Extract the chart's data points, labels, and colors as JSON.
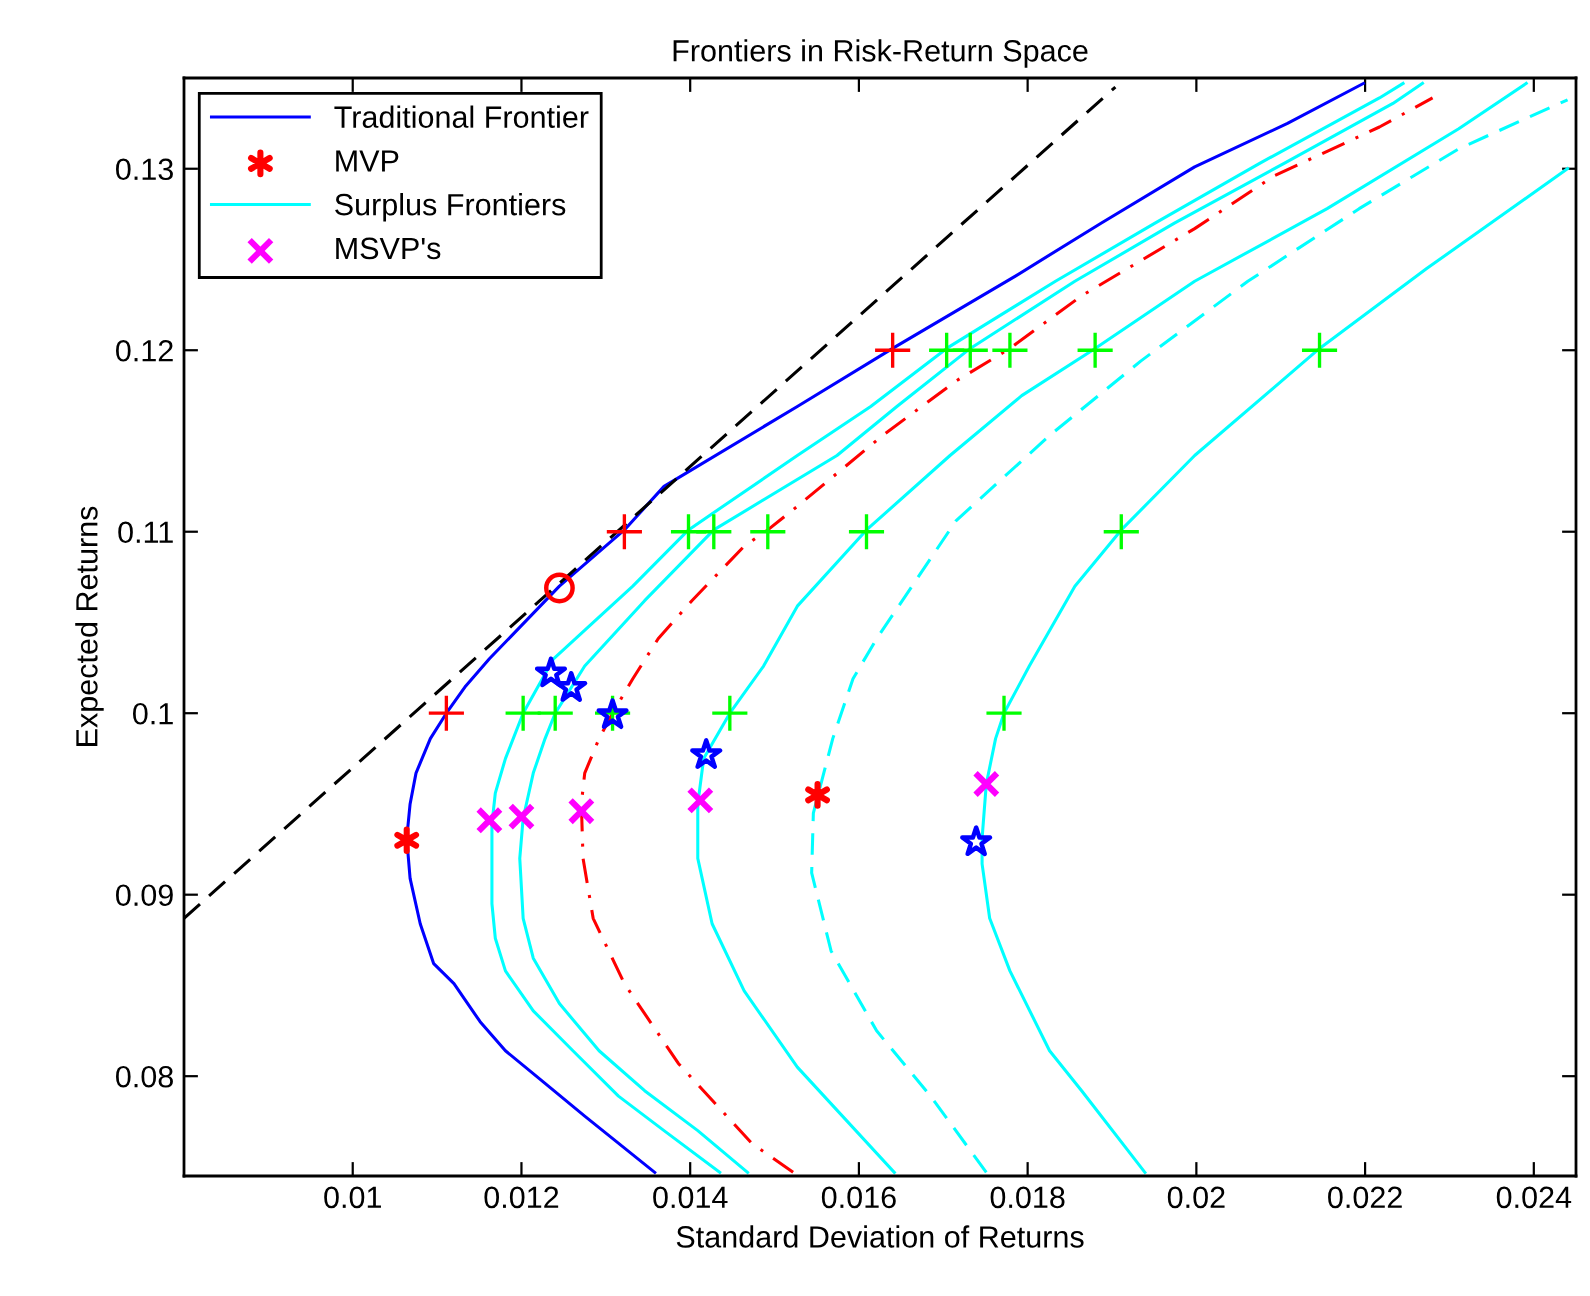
{
  "chart_data": {
    "type": "line",
    "title": "Frontiers in Risk-Return Space",
    "xlabel": "Standard Deviation of Returns",
    "ylabel": "Expected Returns",
    "xlim": [
      0.008,
      0.0245
    ],
    "ylim": [
      0.0745,
      0.135
    ],
    "xticks": [
      0.01,
      0.012,
      0.014,
      0.016,
      0.018,
      0.02,
      0.022,
      0.024
    ],
    "yticks": [
      0.08,
      0.09,
      0.1,
      0.11,
      0.12,
      0.13
    ],
    "grid": false,
    "legend": "top left",
    "series": [
      {
        "name": "Traditional Frontier",
        "color": "#0000ff",
        "line_style": "solid",
        "marker": "none",
        "x": [
          0.01358,
          0.01275,
          0.01228,
          0.01181,
          0.01151,
          0.0112,
          0.01096,
          0.0108,
          0.01068,
          0.01064,
          0.01068,
          0.01075,
          0.01092,
          0.01111,
          0.01134,
          0.01162,
          0.01245,
          0.01322,
          0.01369,
          0.01527,
          0.0164,
          0.01786,
          0.01887,
          0.01998,
          0.02108,
          0.02198
        ],
        "values": [
          0.0747,
          0.0778,
          0.0796,
          0.0814,
          0.083,
          0.0851,
          0.0862,
          0.0884,
          0.0909,
          0.0931,
          0.095,
          0.0967,
          0.0986,
          0.1,
          0.1015,
          0.103,
          0.107,
          0.1101,
          0.1125,
          0.1169,
          0.1201,
          0.1241,
          0.127,
          0.1301,
          0.1325,
          0.1347
        ]
      },
      {
        "name": "MVP",
        "type": "scatter",
        "color": "#ff0000",
        "x": [
          0.01064,
          0.01551
        ],
        "values": [
          0.093,
          0.0955
        ]
      },
      {
        "name": "Surplus Frontiers",
        "color": "#00ffff",
        "line_style": "solid",
        "marker": "none",
        "x": [
          0.01435,
          0.01369,
          0.01315,
          0.01261,
          0.01214,
          0.01181,
          0.01169,
          0.01165,
          0.01165,
          0.01169,
          0.01181,
          0.01202,
          0.01238,
          0.01332,
          0.01398,
          0.01527,
          0.01614,
          0.01704,
          0.01833,
          0.01951,
          0.02075,
          0.02217,
          0.02245
        ],
        "values": [
          0.0747,
          0.077,
          0.0789,
          0.0814,
          0.0836,
          0.0858,
          0.0876,
          0.0895,
          0.0939,
          0.0956,
          0.0975,
          0.1,
          0.103,
          0.107,
          0.1101,
          0.1142,
          0.1169,
          0.1201,
          0.1238,
          0.127,
          0.1303,
          0.1339,
          0.1347
        ]
      },
      {
        "name": "MSVP's",
        "type": "scatter",
        "color": "#ff00ff",
        "marker": "cross",
        "x": [
          0.01162,
          0.012,
          0.01271,
          0.01412,
          0.01751
        ],
        "values": [
          0.0941,
          0.0943,
          0.0946,
          0.0952,
          0.0961
        ]
      },
      {
        "color": "#00ffff",
        "line_style": "solid",
        "marker": "none",
        "x": [
          0.01468,
          0.01409,
          0.01346,
          0.01292,
          0.01245,
          0.01214,
          0.01202,
          0.01198,
          0.01202,
          0.01214,
          0.01228,
          0.0124,
          0.01275,
          0.01346,
          0.01428,
          0.01574,
          0.01645,
          0.01732,
          0.01856,
          0.01974,
          0.02104,
          0.02233,
          0.02268
        ],
        "values": [
          0.0747,
          0.077,
          0.0792,
          0.0814,
          0.084,
          0.0865,
          0.0887,
          0.092,
          0.0942,
          0.0967,
          0.0986,
          0.1,
          0.1026,
          0.1062,
          0.1101,
          0.1142,
          0.1169,
          0.1201,
          0.1238,
          0.127,
          0.1303,
          0.1336,
          0.1347
        ]
      },
      {
        "color": "#ff0000",
        "line_style": "dashdot",
        "marker": "none",
        "x": [
          0.01522,
          0.01473,
          0.01386,
          0.01322,
          0.01285,
          0.01273,
          0.01271,
          0.01275,
          0.01292,
          0.01308,
          0.01332,
          0.01362,
          0.01402,
          0.01464,
          0.01492,
          0.01527,
          0.01628,
          0.01715,
          0.01779,
          0.01864,
          0.01998,
          0.02092,
          0.02217,
          0.0228
        ],
        "values": [
          0.0747,
          0.0763,
          0.0807,
          0.0851,
          0.0887,
          0.092,
          0.095,
          0.0967,
          0.0986,
          0.1,
          0.1019,
          0.1041,
          0.1062,
          0.1092,
          0.1101,
          0.1114,
          0.1153,
          0.1183,
          0.1201,
          0.123,
          0.1267,
          0.1296,
          0.1323,
          0.1339
        ]
      },
      {
        "color": "#00ffff",
        "line_style": "solid",
        "marker": "none",
        "x": [
          0.01642,
          0.01527,
          0.01464,
          0.01426,
          0.01409,
          0.01409,
          0.01416,
          0.01447,
          0.01487,
          0.01527,
          0.01609,
          0.01708,
          0.01793,
          0.0188,
          0.01998,
          0.02155,
          0.02311,
          0.02391
        ],
        "values": [
          0.0747,
          0.0805,
          0.0847,
          0.0884,
          0.092,
          0.095,
          0.0975,
          0.1,
          0.1026,
          0.1059,
          0.1101,
          0.1142,
          0.1175,
          0.1201,
          0.1238,
          0.1278,
          0.1322,
          0.1347
        ]
      },
      {
        "color": "#00ffff",
        "line_style": "dashed",
        "marker": "none",
        "x": [
          0.01751,
          0.01685,
          0.01621,
          0.01567,
          0.01544,
          0.01546,
          0.01569,
          0.01593,
          0.01621,
          0.01715,
          0.01826,
          0.01934,
          0.02061,
          0.02193,
          0.02311,
          0.0244
        ],
        "values": [
          0.0747,
          0.0789,
          0.0825,
          0.0869,
          0.0912,
          0.0945,
          0.0986,
          0.1019,
          0.1041,
          0.1106,
          0.1153,
          0.1194,
          0.1238,
          0.1278,
          0.1311,
          0.1338
        ]
      },
      {
        "color": "#00ffff",
        "line_style": "solid",
        "marker": "none",
        "x": [
          0.01939,
          0.01864,
          0.01826,
          0.01779,
          0.01755,
          0.01746,
          0.01746,
          0.01751,
          0.01762,
          0.01772,
          0.01802,
          0.01856,
          0.01911,
          0.01998,
          0.02146,
          0.02273,
          0.0244
        ],
        "values": [
          0.0747,
          0.0792,
          0.0814,
          0.0858,
          0.0887,
          0.0917,
          0.0931,
          0.0961,
          0.0986,
          0.1,
          0.1026,
          0.107,
          0.1101,
          0.1142,
          0.1201,
          0.1245,
          0.13
        ]
      },
      {
        "color": "#000000",
        "line_style": "dashed",
        "marker": "none",
        "x": [
          0.008,
          0.01904
        ],
        "values": [
          0.0887,
          0.1345
        ]
      },
      {
        "type": "scatter",
        "color": "#ff0000",
        "marker": "plus",
        "x": [
          0.01111,
          0.01322,
          0.0164
        ],
        "values": [
          0.1,
          0.11,
          0.12
        ]
      },
      {
        "type": "scatter",
        "color": "#00ff00",
        "marker": "plus",
        "x": [
          0.01202,
          0.0124,
          0.01308,
          0.01447,
          0.01772,
          0.01398,
          0.01428,
          0.01492,
          0.01609,
          0.01911,
          0.01704,
          0.01732,
          0.01779,
          0.0188,
          0.02146
        ],
        "values": [
          0.1,
          0.1,
          0.1,
          0.1,
          0.1,
          0.11,
          0.11,
          0.11,
          0.11,
          0.11,
          0.12,
          0.12,
          0.12,
          0.12,
          0.12
        ]
      },
      {
        "type": "scatter",
        "color": "#0000ff",
        "marker": "star",
        "x": [
          0.01235,
          0.01259,
          0.01308,
          0.01419,
          0.01739
        ],
        "values": [
          0.1022,
          0.1014,
          0.0999,
          0.0977,
          0.0929
        ]
      },
      {
        "type": "scatter",
        "color": "#ff0000",
        "marker": "circle",
        "x": [
          0.01245
        ],
        "values": [
          0.1069
        ]
      }
    ]
  }
}
